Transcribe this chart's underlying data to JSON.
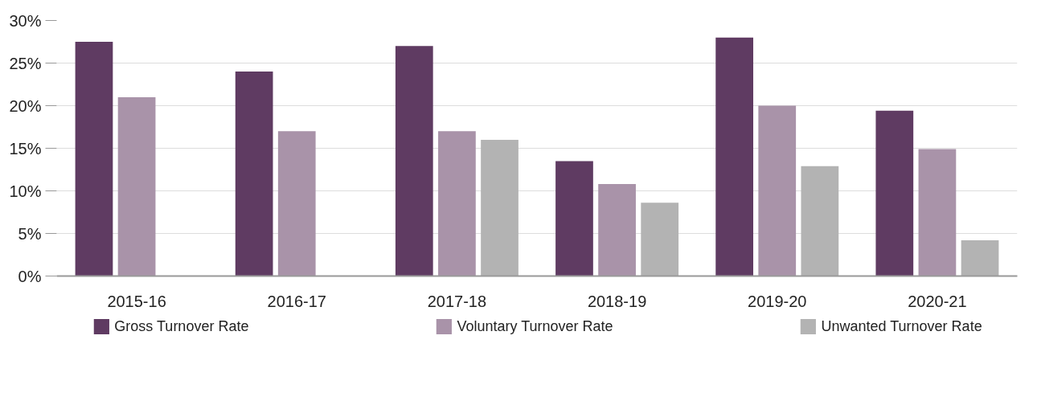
{
  "chart_data": {
    "type": "bar",
    "categories": [
      "2015-16",
      "2016-17",
      "2017-18",
      "2018-19",
      "2019-20",
      "2020-21"
    ],
    "series": [
      {
        "name": "Gross Turnover Rate",
        "color": "#5f3b62",
        "values": [
          27.5,
          24.0,
          27.0,
          13.5,
          28.0,
          19.4
        ]
      },
      {
        "name": "Voluntary Turnover Rate",
        "color": "#a993a9",
        "values": [
          21.0,
          17.0,
          17.0,
          10.8,
          20.0,
          14.9
        ]
      },
      {
        "name": "Unwanted Turnover Rate",
        "color": "#b3b3b3",
        "values": [
          null,
          null,
          16.0,
          8.6,
          12.9,
          4.2
        ]
      }
    ],
    "ylim": [
      0,
      30
    ],
    "yticks": [
      {
        "value": 0,
        "label": "0%"
      },
      {
        "value": 5,
        "label": "5%"
      },
      {
        "value": 10,
        "label": "10%"
      },
      {
        "value": 15,
        "label": "15%"
      },
      {
        "value": 20,
        "label": "20%"
      },
      {
        "value": 25,
        "label": "25%"
      },
      {
        "value": 30,
        "label": "30%"
      }
    ],
    "grid": "y",
    "legend": "bottom"
  }
}
